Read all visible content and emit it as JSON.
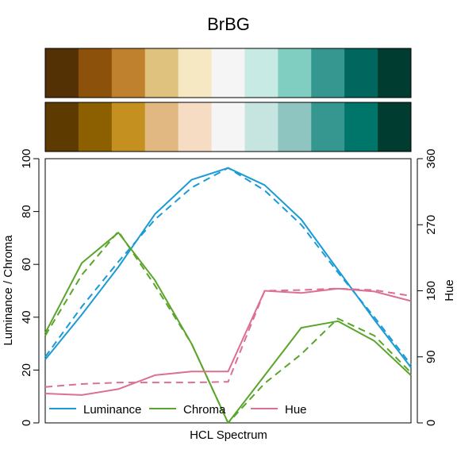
{
  "chart_data": {
    "type": "line",
    "title": "BrBG",
    "xlabel": "HCL Spectrum",
    "ylabel_left": "Luminance / Chroma",
    "ylabel_right": "Hue",
    "ylim_left": [
      0,
      100
    ],
    "ylim_right": [
      0,
      360
    ],
    "yticks_left": [
      "0",
      "20",
      "40",
      "60",
      "80",
      "100"
    ],
    "yticks_right": [
      "0",
      "90",
      "180",
      "270",
      "360"
    ],
    "palette_top": [
      "#543005",
      "#8C510A",
      "#BF812D",
      "#DFC27D",
      "#F6E8C3",
      "#F5F5F5",
      "#C7EAE5",
      "#80CDC1",
      "#35978F",
      "#01665E",
      "#003C30"
    ],
    "palette_bottom": [
      "#5C3A00",
      "#8C6000",
      "#C49020",
      "#E2B882",
      "#F5DCC3",
      "#F5F5F5",
      "#C6E5E0",
      "#8EC5C0",
      "#35978F",
      "#00756A",
      "#003C30"
    ],
    "x": [
      1,
      2,
      3,
      4,
      5,
      6,
      7,
      8,
      9,
      10,
      11
    ],
    "series": [
      {
        "name": "Luminance",
        "axis": "left",
        "color": "#1B9BD6",
        "style": "solid",
        "values": [
          24,
          41,
          59,
          79,
          92,
          96.5,
          90,
          77,
          58,
          39,
          21
        ]
      },
      {
        "name": "",
        "axis": "left",
        "color": "#1B9BD6",
        "style": "dashed",
        "values": [
          25,
          44,
          61,
          77,
          89,
          96.5,
          88,
          75,
          57,
          40,
          22
        ]
      },
      {
        "name": "Chroma",
        "axis": "left",
        "color": "#5AA52A",
        "style": "solid",
        "values": [
          34,
          60.5,
          72,
          54,
          30,
          0,
          18,
          36,
          38.5,
          31,
          18
        ]
      },
      {
        "name": "",
        "axis": "left",
        "color": "#5AA52A",
        "style": "dashed",
        "values": [
          33,
          56,
          72.5,
          52,
          30,
          0,
          15,
          26,
          39.5,
          33,
          19
        ]
      },
      {
        "name": "Hue",
        "axis": "right",
        "color": "#DB7090",
        "style": "solid",
        "values": [
          40,
          38,
          46,
          65,
          70,
          70,
          180,
          177,
          183,
          179,
          166
        ]
      },
      {
        "name": "",
        "axis": "right",
        "color": "#DB7090",
        "style": "dashed",
        "values": [
          49,
          53,
          55,
          55,
          55,
          56,
          180,
          181,
          183,
          181,
          173
        ]
      }
    ],
    "legend_position": "bottom",
    "grid": false
  }
}
